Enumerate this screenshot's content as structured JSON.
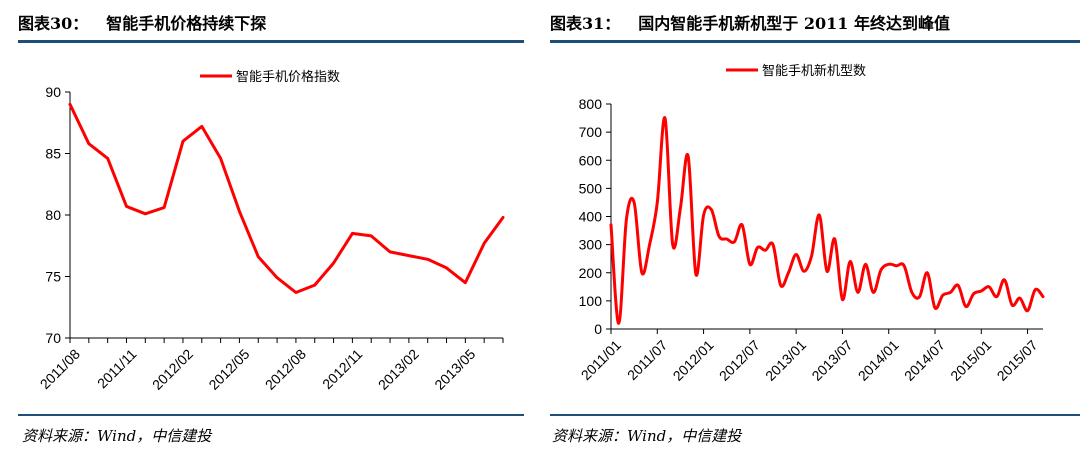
{
  "charts": [
    {
      "title_label": "图表30：",
      "title": "智能手机价格持续下探",
      "source": "资料来源：Wind，中信建投",
      "legend": "智能手机价格指数",
      "line_color": "#ff0000"
    },
    {
      "title_label": "图表31：",
      "title": "国内智能手机新机型于 2011 年终达到峰值",
      "source": "资料来源：Wind，中信建投",
      "legend": "智能手机新机型数",
      "line_color": "#ff0000"
    }
  ],
  "chart_data": [
    {
      "type": "line",
      "title": "智能手机价格持续下探",
      "series": [
        {
          "name": "智能手机价格指数",
          "values": [
            89.0,
            85.8,
            84.6,
            80.7,
            80.1,
            80.6,
            86.0,
            87.2,
            84.6,
            80.3,
            76.6,
            74.9,
            73.7,
            74.3,
            76.1,
            78.5,
            78.3,
            77.0,
            76.7,
            76.4,
            75.7,
            74.5,
            77.7,
            79.8
          ]
        }
      ],
      "x": [
        "2011/08",
        "2011/09",
        "2011/10",
        "2011/11",
        "2011/12",
        "2012/01",
        "2012/02",
        "2012/03",
        "2012/04",
        "2012/05",
        "2012/06",
        "2012/07",
        "2012/08",
        "2012/09",
        "2012/10",
        "2012/11",
        "2012/12",
        "2013/01",
        "2013/02",
        "2013/03",
        "2013/04",
        "2013/05",
        "2013/06",
        "2013/07"
      ],
      "xticks": [
        "2011/08",
        "2011/11",
        "2012/02",
        "2012/05",
        "2012/08",
        "2012/11",
        "2013/02",
        "2013/05"
      ],
      "yticks": [
        70,
        75,
        80,
        85,
        90
      ],
      "ylim": [
        70,
        90
      ],
      "legend_position": "top-center"
    },
    {
      "type": "line",
      "title": "国内智能手机新机型于 2011 年终达到峰值",
      "series": [
        {
          "name": "智能手机新机型数",
          "values": [
            370,
            20,
            390,
            450,
            200,
            300,
            450,
            750,
            300,
            430,
            615,
            195,
            405,
            425,
            330,
            320,
            310,
            370,
            230,
            290,
            280,
            300,
            155,
            200,
            265,
            205,
            260,
            405,
            205,
            320,
            105,
            240,
            130,
            230,
            130,
            210,
            230,
            225,
            225,
            130,
            115,
            200,
            75,
            120,
            130,
            155,
            80,
            125,
            135,
            150,
            115,
            175,
            85,
            110,
            65,
            140,
            115
          ]
        }
      ],
      "x": [
        "2011/01",
        "2011/02",
        "2011/03",
        "2011/04",
        "2011/05",
        "2011/06",
        "2011/07",
        "2011/08",
        "2011/09",
        "2011/10",
        "2011/11",
        "2011/12",
        "2012/01",
        "2012/02",
        "2012/03",
        "2012/04",
        "2012/05",
        "2012/06",
        "2012/07",
        "2012/08",
        "2012/09",
        "2012/10",
        "2012/11",
        "2012/12",
        "2013/01",
        "2013/02",
        "2013/03",
        "2013/04",
        "2013/05",
        "2013/06",
        "2013/07",
        "2013/08",
        "2013/09",
        "2013/10",
        "2013/11",
        "2013/12",
        "2014/01",
        "2014/02",
        "2014/03",
        "2014/04",
        "2014/05",
        "2014/06",
        "2014/07",
        "2014/08",
        "2014/09",
        "2014/10",
        "2014/11",
        "2014/12",
        "2015/01",
        "2015/02",
        "2015/03",
        "2015/04",
        "2015/05",
        "2015/06",
        "2015/07",
        "2015/08",
        "2015/09"
      ],
      "xticks": [
        "2011/01",
        "2011/07",
        "2012/01",
        "2012/07",
        "2013/01",
        "2013/07",
        "2014/01",
        "2014/07",
        "2015/01",
        "2015/07"
      ],
      "yticks": [
        0,
        100,
        200,
        300,
        400,
        500,
        600,
        700,
        800
      ],
      "ylim": [
        0,
        800
      ],
      "legend_position": "top-center"
    }
  ]
}
